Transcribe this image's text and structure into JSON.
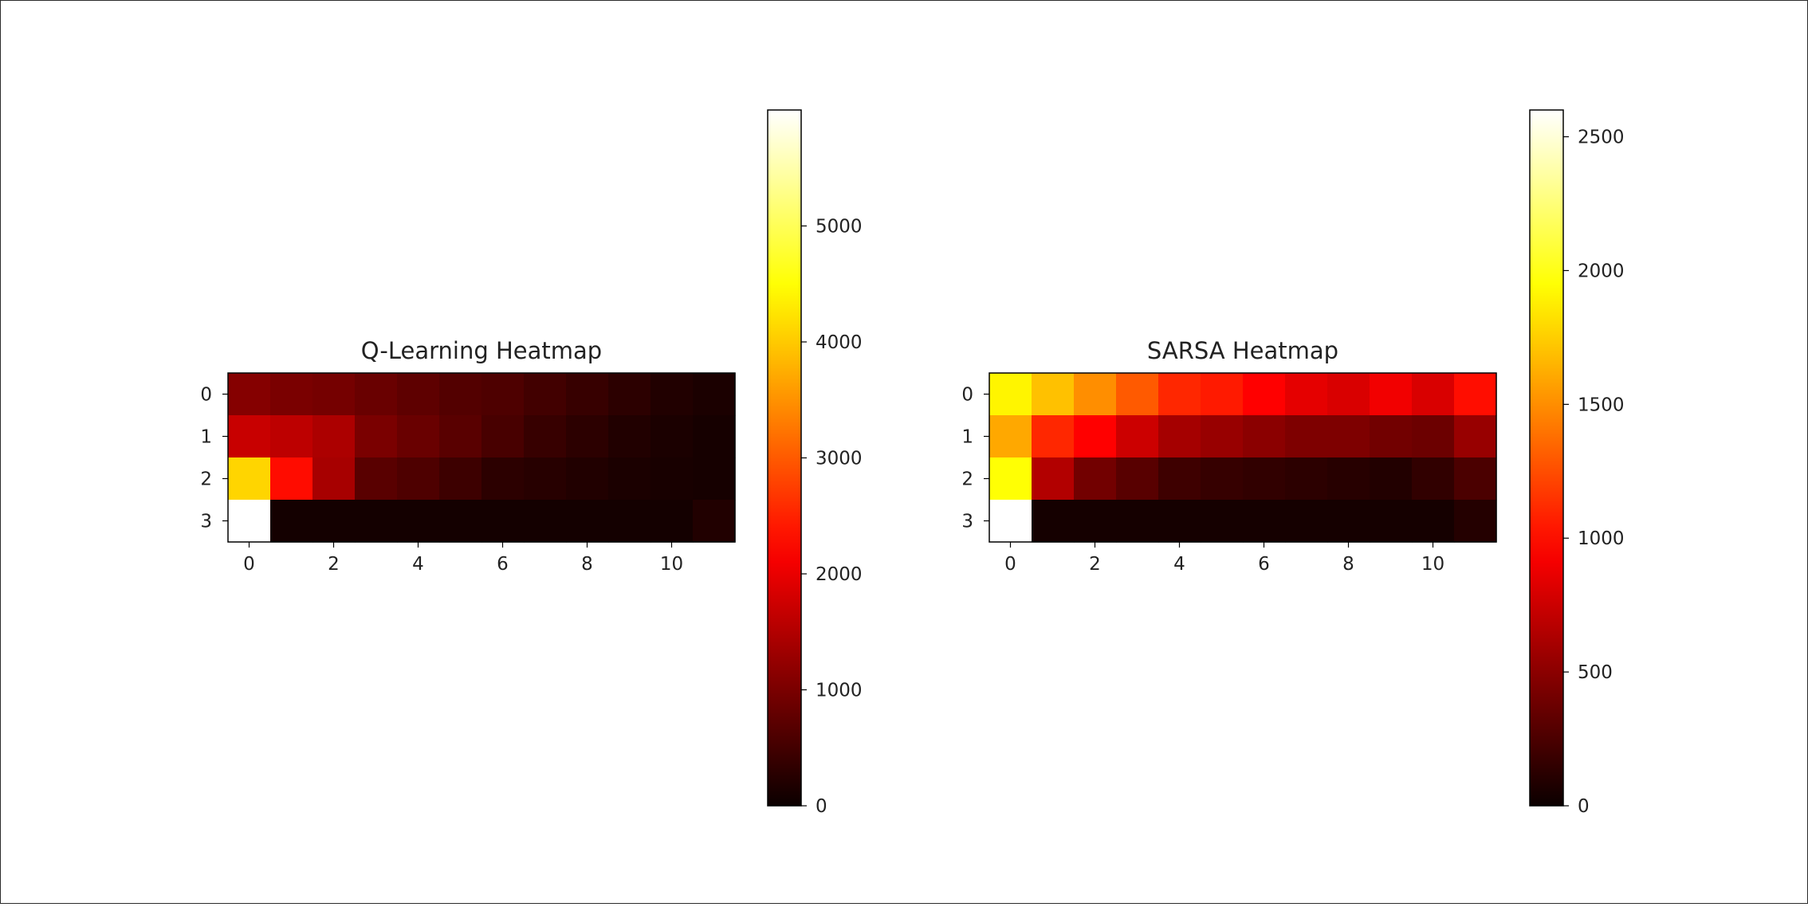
{
  "figure": {
    "colormap": "hot",
    "background": "#ffffff"
  },
  "chart_data": [
    {
      "type": "heatmap",
      "title": "Q-Learning Heatmap",
      "rows": 4,
      "cols": 12,
      "x_ticks": [
        0,
        2,
        4,
        6,
        8,
        10
      ],
      "y_ticks": [
        0,
        1,
        2,
        3
      ],
      "colorbar": {
        "vmin": 0,
        "vmax": 6000,
        "ticks": [
          0,
          1000,
          2000,
          3000,
          4000,
          5000
        ]
      },
      "values": [
        [
          1100,
          1000,
          950,
          850,
          750,
          650,
          600,
          500,
          400,
          300,
          200,
          150
        ],
        [
          1700,
          1600,
          1450,
          1000,
          850,
          700,
          550,
          400,
          300,
          200,
          150,
          100
        ],
        [
          4100,
          2300,
          1400,
          700,
          600,
          450,
          300,
          250,
          200,
          150,
          120,
          100
        ],
        [
          6000,
          80,
          80,
          80,
          80,
          80,
          80,
          80,
          80,
          80,
          80,
          200
        ]
      ]
    },
    {
      "type": "heatmap",
      "title": "SARSA Heatmap",
      "rows": 4,
      "cols": 12,
      "x_ticks": [
        0,
        2,
        4,
        6,
        8,
        10
      ],
      "y_ticks": [
        0,
        1,
        2,
        3
      ],
      "colorbar": {
        "vmin": 0,
        "vmax": 2600,
        "ticks": [
          0,
          500,
          1000,
          1500,
          2000,
          2500
        ]
      },
      "values": [
        [
          1900,
          1700,
          1500,
          1300,
          1100,
          1050,
          950,
          850,
          800,
          900,
          800,
          1000
        ],
        [
          1600,
          1100,
          950,
          750,
          600,
          550,
          500,
          450,
          450,
          400,
          380,
          550
        ],
        [
          1950,
          650,
          400,
          300,
          200,
          170,
          150,
          130,
          110,
          90,
          150,
          250
        ],
        [
          2600,
          40,
          40,
          40,
          40,
          40,
          40,
          40,
          40,
          40,
          40,
          100
        ]
      ]
    }
  ]
}
